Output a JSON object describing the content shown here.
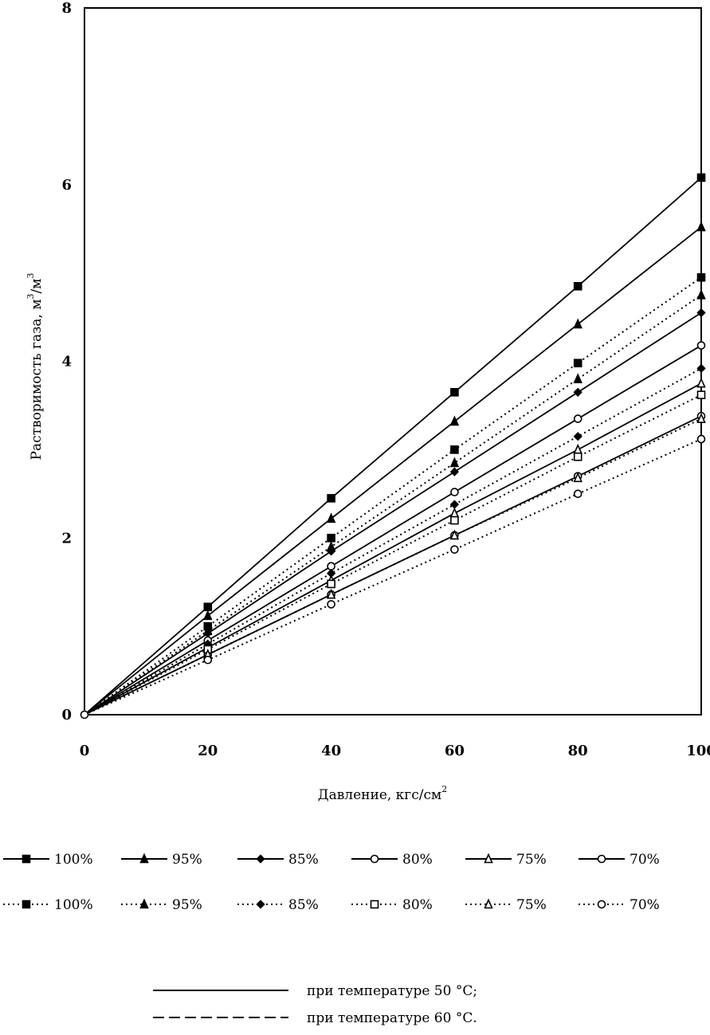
{
  "chart_data": {
    "type": "line",
    "title": "",
    "xlabel": "Давление, кгс/см",
    "xlabel_sup": "2",
    "ylabel": "Растворимость газа, м",
    "ylabel_sup1": "3",
    "ylabel_mid": "/м",
    "ylabel_sup2": "3",
    "xlim": [
      0,
      100
    ],
    "ylim": [
      0,
      8
    ],
    "x_ticks": [
      "0",
      "20",
      "40",
      "60",
      "80",
      "100"
    ],
    "y_ticks": [
      "0",
      "2",
      "4",
      "6",
      "8"
    ],
    "grid": false,
    "legend_position": "bottom",
    "x": [
      0,
      20,
      40,
      60,
      80,
      100
    ],
    "series": [
      {
        "name": "100%",
        "group": "50",
        "marker": "square",
        "values": [
          0,
          1.22,
          2.45,
          3.65,
          4.85,
          6.08
        ]
      },
      {
        "name": "95%",
        "group": "50",
        "marker": "triangle",
        "values": [
          0,
          1.12,
          2.22,
          3.32,
          4.42,
          5.52
        ]
      },
      {
        "name": "85%",
        "group": "50",
        "marker": "diamond",
        "values": [
          0,
          0.92,
          1.85,
          2.75,
          3.65,
          4.55
        ]
      },
      {
        "name": "80%",
        "group": "50",
        "marker": "circle-open",
        "values": [
          0,
          0.84,
          1.68,
          2.52,
          3.35,
          4.18
        ]
      },
      {
        "name": "75%",
        "group": "50",
        "marker": "triangle-open",
        "values": [
          0,
          0.76,
          1.52,
          2.28,
          3.0,
          3.75
        ]
      },
      {
        "name": "70%",
        "group": "50",
        "marker": "circle-open",
        "values": [
          0,
          0.68,
          1.36,
          2.03,
          2.7,
          3.38
        ]
      },
      {
        "name": "100%",
        "group": "60",
        "marker": "square",
        "values": [
          0,
          1.0,
          2.0,
          3.0,
          3.98,
          4.95
        ]
      },
      {
        "name": "95%",
        "group": "60",
        "marker": "triangle",
        "values": [
          0,
          0.95,
          1.9,
          2.85,
          3.8,
          4.75
        ]
      },
      {
        "name": "85%",
        "group": "60",
        "marker": "diamond",
        "values": [
          0,
          0.8,
          1.6,
          2.38,
          3.15,
          3.92
        ]
      },
      {
        "name": "80%",
        "group": "60",
        "marker": "square-open",
        "values": [
          0,
          0.74,
          1.48,
          2.2,
          2.92,
          3.62
        ]
      },
      {
        "name": "75%",
        "group": "60",
        "marker": "triangle-open",
        "values": [
          0,
          0.68,
          1.36,
          2.03,
          2.68,
          3.35
        ]
      },
      {
        "name": "70%",
        "group": "60",
        "marker": "circle-open",
        "values": [
          0,
          0.62,
          1.25,
          1.87,
          2.5,
          3.12
        ]
      }
    ],
    "notes": [
      {
        "style": "solid",
        "label": "при температуре 50 °С;"
      },
      {
        "style": "dotted",
        "label": "при температуре 60 °С."
      }
    ]
  }
}
